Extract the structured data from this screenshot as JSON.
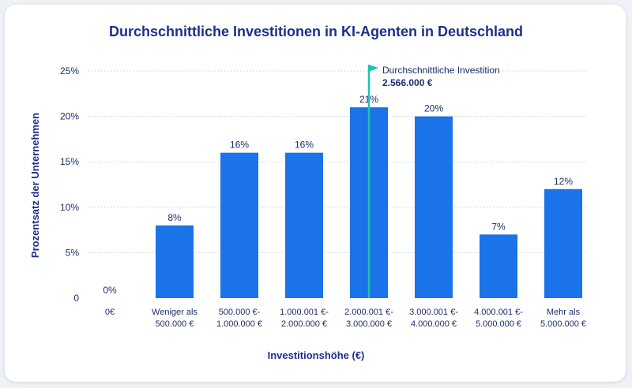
{
  "chart_data": {
    "type": "bar",
    "title": "Durchschnittliche Investitionen in KI-Agenten in Deutschland",
    "xlabel": "Investitionshöhe (€)",
    "ylabel": "Prozentsatz der Unternehmen",
    "categories": [
      [
        "0€"
      ],
      [
        "Weniger als",
        "500.000 €"
      ],
      [
        "500.000 €-",
        "1.000.000 €"
      ],
      [
        "1.000.001 €-",
        "2.000.000 €"
      ],
      [
        "2.000.001 €-",
        "3.000.000 €"
      ],
      [
        "3.000.001 €-",
        "4.000.000 €"
      ],
      [
        "4.000.001 €-",
        "5.000.000 €"
      ],
      [
        "Mehr als",
        "5.000.000 €"
      ]
    ],
    "values": [
      0,
      8,
      16,
      16,
      21,
      20,
      7,
      12
    ],
    "value_labels": [
      "0%",
      "8%",
      "16%",
      "16%",
      "21%",
      "20%",
      "7%",
      "12%"
    ],
    "ylim": [
      0,
      25
    ],
    "yticks": [
      0,
      5,
      10,
      15,
      20,
      25
    ],
    "ytick_labels": [
      "0",
      "5%",
      "10%",
      "15%",
      "20%",
      "25%"
    ],
    "grid": true,
    "annotation": {
      "label": "Durchschnittliche Investition",
      "value": "2.566.000 €",
      "category_index": 4
    },
    "colors": {
      "bar": "#1a73e8",
      "marker": "#20c2b0",
      "grid": "#c9ced8",
      "title": "#1e2f8a"
    }
  }
}
